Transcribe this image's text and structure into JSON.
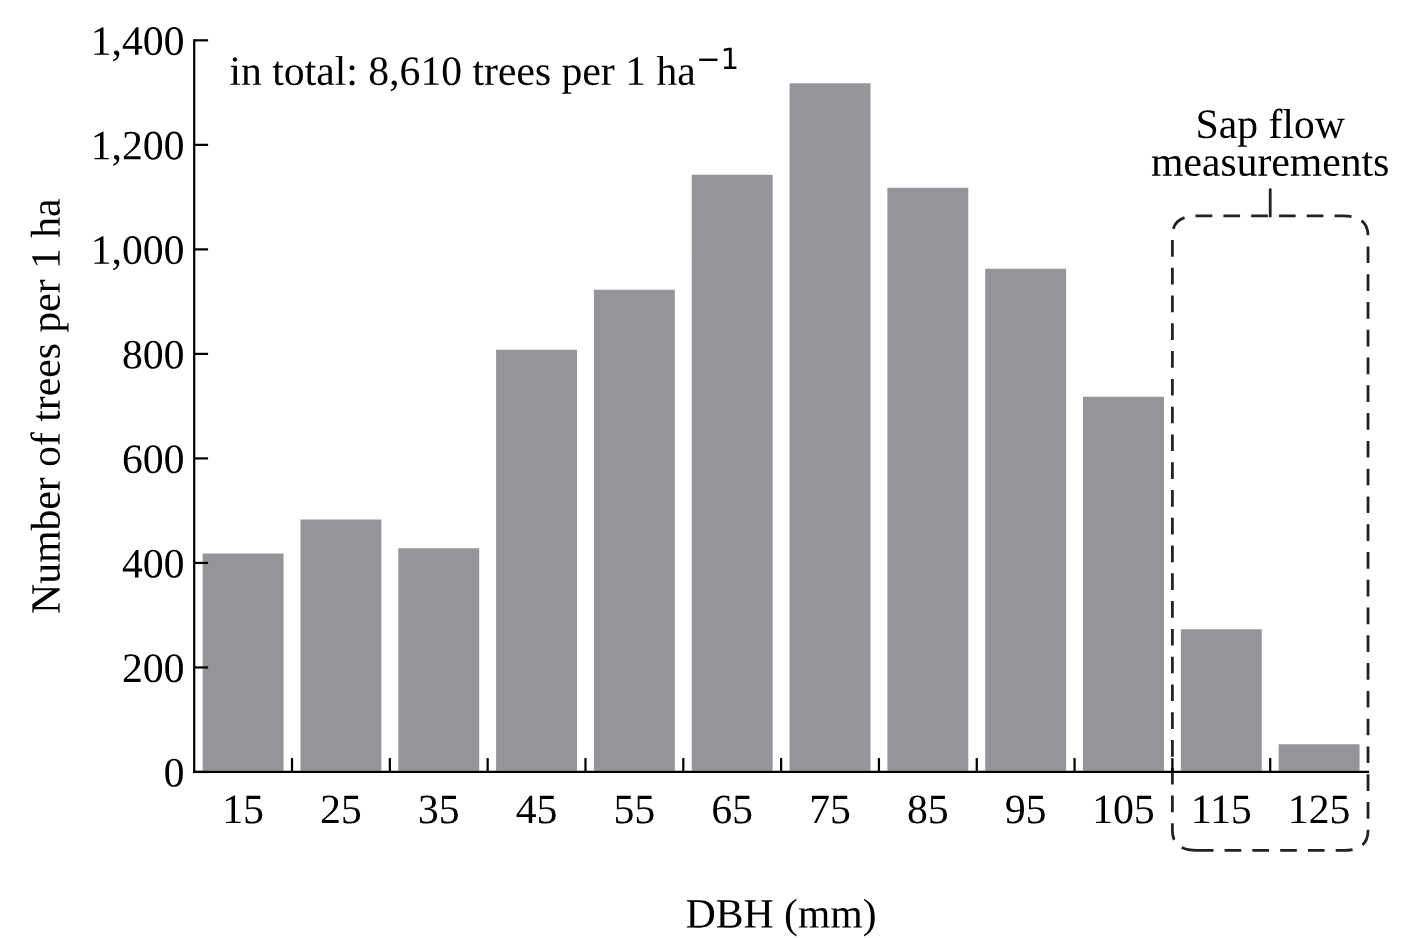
{
  "chart_data": {
    "type": "bar",
    "xlabel": "DBH (mm)",
    "ylabel": "Number of trees per 1 ha",
    "categories": [
      "15",
      "25",
      "35",
      "45",
      "55",
      "65",
      "75",
      "85",
      "95",
      "105",
      "115",
      "125"
    ],
    "values": [
      420,
      485,
      430,
      810,
      925,
      1145,
      1320,
      1120,
      965,
      720,
      275,
      55
    ],
    "color": "#939598",
    "ylim": [
      0,
      1400
    ],
    "yticks": [
      {
        "value": 0,
        "label": "0"
      },
      {
        "value": 200,
        "label": "200"
      },
      {
        "value": 400,
        "label": "400"
      },
      {
        "value": 600,
        "label": "600"
      },
      {
        "value": 800,
        "label": "800"
      },
      {
        "value": 1000,
        "label": "1,000"
      },
      {
        "value": 1200,
        "label": "1,200"
      },
      {
        "value": 1400,
        "label": "1,400"
      }
    ],
    "grid": false,
    "annotations": [
      "in total: 8,610 trees per 1 ha$^{−1}$",
      "Sap flow measurements"
    ]
  }
}
